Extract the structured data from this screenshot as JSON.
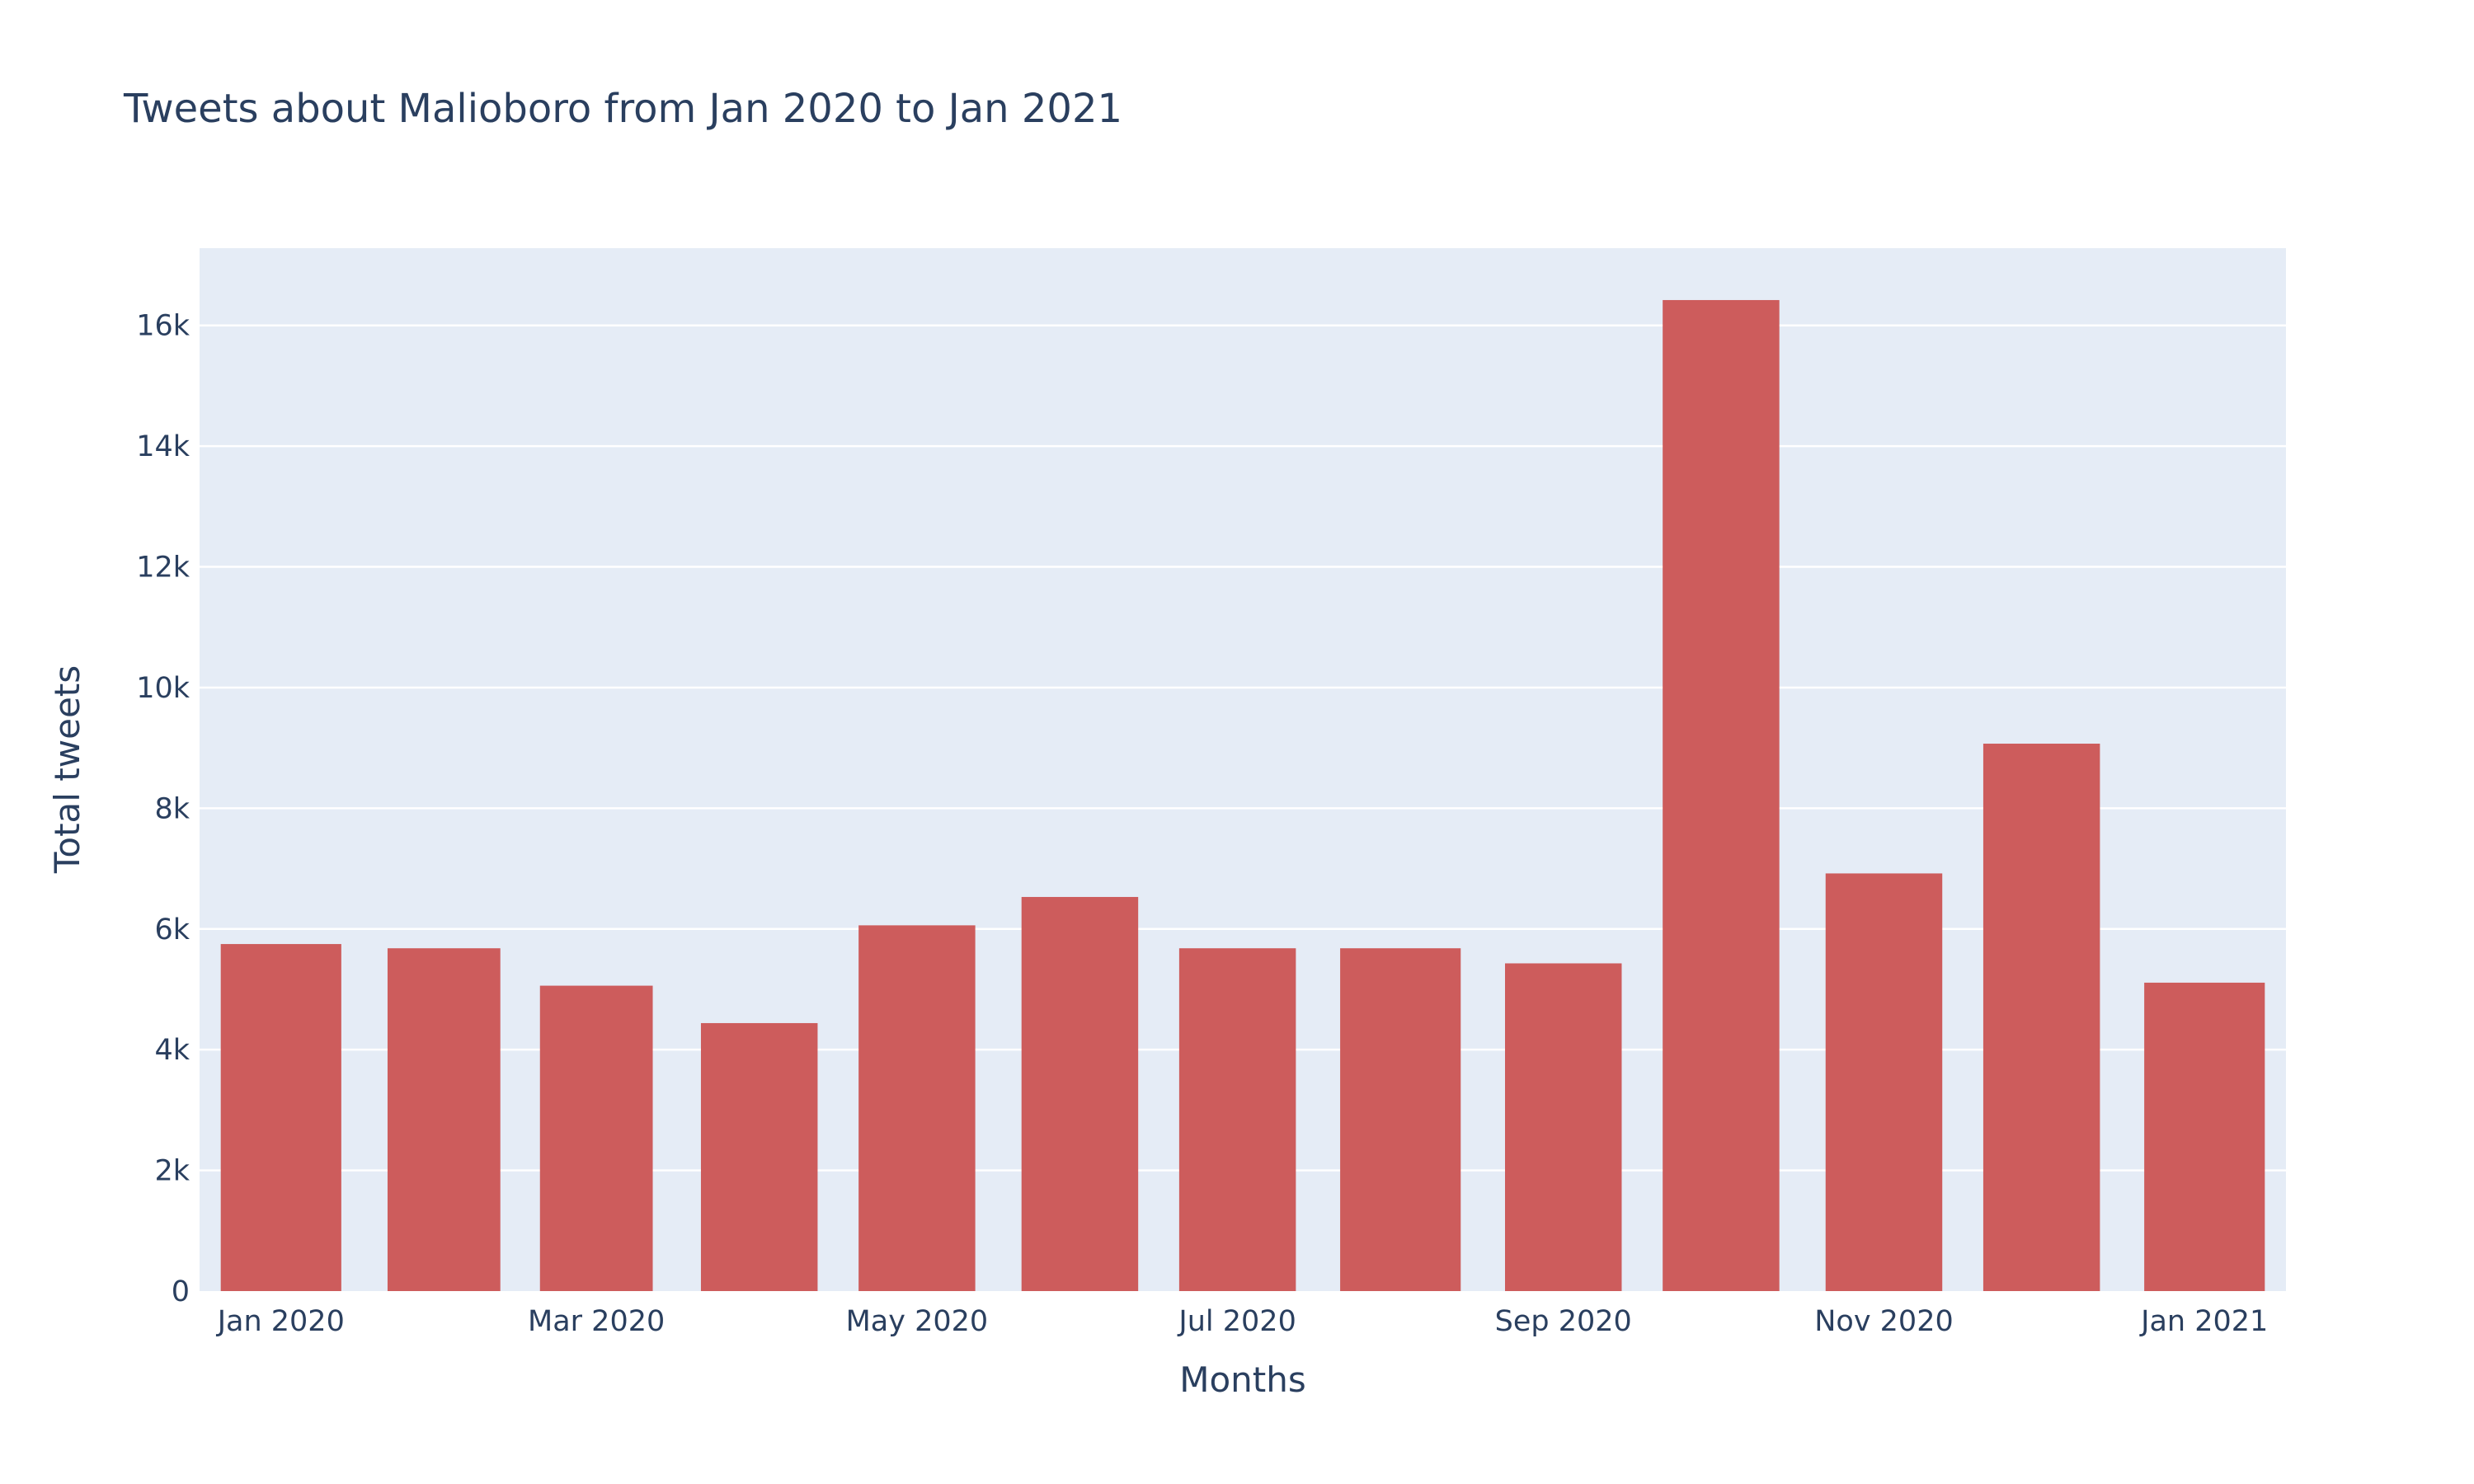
{
  "chart_data": {
    "type": "bar",
    "title": "Tweets about Malioboro from Jan 2020 to Jan 2021",
    "xlabel": "Months",
    "ylabel": "Total tweets",
    "x": [
      "2020-01",
      "2020-02",
      "2020-03",
      "2020-04",
      "2020-05",
      "2020-06",
      "2020-07",
      "2020-08",
      "2020-09",
      "2020-10",
      "2020-11",
      "2020-12",
      "2021-01"
    ],
    "values": [
      5750,
      5680,
      5060,
      4440,
      6060,
      6530,
      5680,
      5680,
      5430,
      16420,
      6920,
      9070,
      5110
    ],
    "x_tick_labels": [
      {
        "x": "2020-01",
        "label": "Jan 2020"
      },
      {
        "x": "2020-03",
        "label": "Mar 2020"
      },
      {
        "x": "2020-05",
        "label": "May 2020"
      },
      {
        "x": "2020-07",
        "label": "Jul 2020"
      },
      {
        "x": "2020-09",
        "label": "Sep 2020"
      },
      {
        "x": "2020-11",
        "label": "Nov 2020"
      },
      {
        "x": "2021-01",
        "label": "Jan 2021"
      }
    ],
    "y_ticks": [
      0,
      2000,
      4000,
      6000,
      8000,
      10000,
      12000,
      14000,
      16000
    ],
    "y_tick_labels": [
      "0",
      "2k",
      "4k",
      "6k",
      "8k",
      "10k",
      "12k",
      "14k",
      "16k"
    ],
    "ylim": [
      0,
      17280
    ],
    "grid": true,
    "colors": {
      "bar": "#cd5c5c",
      "plot_bg": "#e5ecf6",
      "text": "#2a3f5f"
    }
  }
}
